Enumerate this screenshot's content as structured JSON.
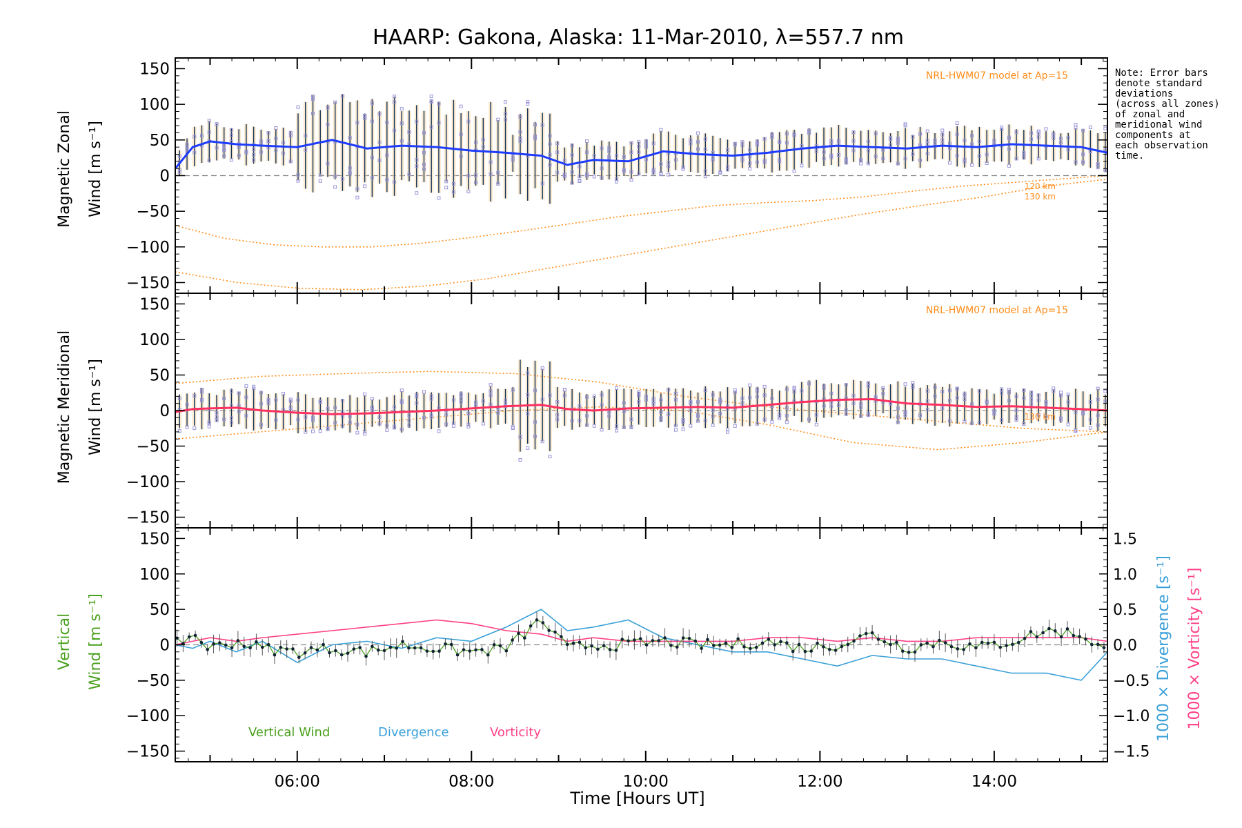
{
  "title": "HAARP: Gakona,  Alaska: 11-Mar-2010, λ=557.7 nm",
  "note_lines": [
    "Note: Error bars",
    "denote standard",
    "deviations",
    "(across all zones)",
    "of zonal and",
    "meridional wind",
    "components at",
    "each observation",
    "time."
  ],
  "x_axis": {
    "label": "Time [Hours UT]",
    "range_hours": [
      4.6,
      15.3
    ],
    "ticks": [
      {
        "hour": 6,
        "label": "06:00"
      },
      {
        "hour": 8,
        "label": "08:00"
      },
      {
        "hour": 10,
        "label": "10:00"
      },
      {
        "hour": 12,
        "label": "12:00"
      },
      {
        "hour": 14,
        "label": "14:00"
      }
    ]
  },
  "colors": {
    "zonal": "#1e3cff",
    "meridional": "#ff3060",
    "vertical": "#4aa01e",
    "divergence": "#3aa0d8",
    "vorticity": "#ff3f86",
    "model": "#ff8c1a",
    "errorbar": "#14325a",
    "zone_points": "#9a96d8",
    "background_spread": "#f6d8a8"
  },
  "panels": {
    "zonal": {
      "ylabel_line1": "Magnetic Zonal",
      "ylabel_line2": "Wind [m s⁻¹]",
      "model_label": "NRL-HWM07 model at Ap=15",
      "model_alt_labels": [
        "120 km",
        "130 km"
      ]
    },
    "meridional": {
      "ylabel_line1": "Magnetic Meridional",
      "ylabel_line2": "Wind [m s⁻¹]",
      "model_label": "NRL-HWM07 model at Ap=15",
      "model_alt_labels": [
        "130 km"
      ]
    },
    "vertical": {
      "ylabel_line1": "Vertical",
      "ylabel_line2": "Wind [m s⁻¹]",
      "right_axis_label_divergence": "1000 × Divergence [s⁻¹]",
      "right_axis_label_vorticity": "1000 × Vorticity [s⁻¹]",
      "right_ticks": [
        "1.5",
        "1.0",
        "0.5",
        "0.0",
        "−0.5",
        "−1.0",
        "−1.5"
      ],
      "legend": [
        "Vertical Wind",
        "Divergence",
        "Vorticity"
      ]
    }
  },
  "y_ticks": [
    "150",
    "100",
    "50",
    "0",
    "−50",
    "−100",
    "−150"
  ],
  "chart_data": [
    {
      "type": "line",
      "title": "Magnetic Zonal Wind",
      "ylabel": "Magnetic Zonal Wind [m s-1]",
      "ylim": [
        -165,
        165
      ],
      "x_hours": [
        4.6,
        4.8,
        5.0,
        5.3,
        5.6,
        6.0,
        6.4,
        6.8,
        7.2,
        7.6,
        8.0,
        8.4,
        8.8,
        9.1,
        9.4,
        9.8,
        10.2,
        10.6,
        11.0,
        11.4,
        11.8,
        12.2,
        12.6,
        13.0,
        13.4,
        13.8,
        14.2,
        14.6,
        15.0,
        15.3
      ],
      "series": [
        {
          "name": "zonal",
          "values": [
            10,
            40,
            48,
            44,
            42,
            40,
            50,
            38,
            42,
            40,
            35,
            32,
            28,
            15,
            22,
            20,
            34,
            30,
            28,
            32,
            38,
            42,
            40,
            38,
            42,
            40,
            44,
            42,
            40,
            32
          ]
        },
        {
          "name": "120 km",
          "values": [
            -70,
            -88,
            -97,
            -100,
            -100,
            -95,
            -87,
            -78,
            -68,
            -58,
            -50,
            -42,
            -38,
            -35,
            -30,
            -22,
            -15,
            -10,
            -5,
            0
          ]
        },
        {
          "name": "130 km",
          "values": [
            -135,
            -150,
            -158,
            -160,
            -155,
            -145,
            -130,
            -115,
            -100,
            -85,
            -70,
            -55,
            -42,
            -30,
            -15,
            -5
          ]
        }
      ]
    },
    {
      "type": "line",
      "title": "Magnetic Meridional Wind",
      "ylabel": "Magnetic Meridional Wind [m s-1]",
      "ylim": [
        -165,
        165
      ],
      "x_hours": [
        4.6,
        4.8,
        5.0,
        5.3,
        5.6,
        6.0,
        6.4,
        6.8,
        7.2,
        7.6,
        8.0,
        8.4,
        8.8,
        9.1,
        9.4,
        9.8,
        10.2,
        10.6,
        11.0,
        11.4,
        11.8,
        12.2,
        12.6,
        13.0,
        13.4,
        13.8,
        14.2,
        14.6,
        15.0,
        15.3
      ],
      "series": [
        {
          "name": "meridional",
          "values": [
            -2,
            2,
            3,
            4,
            0,
            -3,
            -5,
            -4,
            -2,
            0,
            3,
            6,
            8,
            2,
            0,
            3,
            4,
            5,
            4,
            8,
            12,
            15,
            16,
            10,
            8,
            5,
            6,
            4,
            2,
            0
          ]
        }
      ]
    },
    {
      "type": "line",
      "title": "Vertical Wind, Divergence, Vorticity",
      "ylabel": "Vertical Wind [m s-1]",
      "ylim": [
        -165,
        165
      ],
      "y2label": "1000 x Divergence / Vorticity [s-1]",
      "y2lim": [
        -1.65,
        1.65
      ],
      "x_hours": [
        4.6,
        4.8,
        5.0,
        5.3,
        5.6,
        6.0,
        6.4,
        6.8,
        7.2,
        7.6,
        8.0,
        8.4,
        8.8,
        9.1,
        9.4,
        9.8,
        10.2,
        10.6,
        11.0,
        11.4,
        11.8,
        12.2,
        12.6,
        13.0,
        13.4,
        13.8,
        14.2,
        14.6,
        15.0,
        15.3
      ],
      "series": [
        {
          "name": "Vertical Wind",
          "values": [
            0,
            15,
            -5,
            5,
            -5,
            -10,
            -5,
            -10,
            0,
            -5,
            -10,
            -5,
            35,
            -5,
            0,
            0,
            5,
            0,
            0,
            5,
            -5,
            0,
            15,
            -5,
            5,
            -5,
            5,
            20,
            15,
            -10
          ]
        },
        {
          "name": "Divergence",
          "values": [
            0,
            -0.05,
            0.05,
            -0.1,
            0.05,
            -0.25,
            0.0,
            0.05,
            -0.05,
            0.1,
            0.05,
            0.25,
            0.5,
            0.2,
            0.25,
            0.35,
            0.1,
            0.0,
            -0.1,
            -0.1,
            -0.2,
            -0.3,
            -0.15,
            -0.2,
            -0.2,
            -0.3,
            -0.4,
            -0.4,
            -0.5,
            -0.1
          ]
        },
        {
          "name": "Vorticity",
          "values": [
            0,
            0.05,
            0.1,
            0.05,
            0.1,
            0.15,
            0.2,
            0.25,
            0.3,
            0.35,
            0.3,
            0.2,
            0.15,
            0.05,
            0.1,
            0.05,
            0.05,
            0.05,
            0.05,
            0.1,
            0.1,
            0.05,
            0.1,
            0.05,
            0.05,
            0.1,
            0.1,
            0.1,
            0.1,
            0.05
          ]
        }
      ]
    }
  ]
}
